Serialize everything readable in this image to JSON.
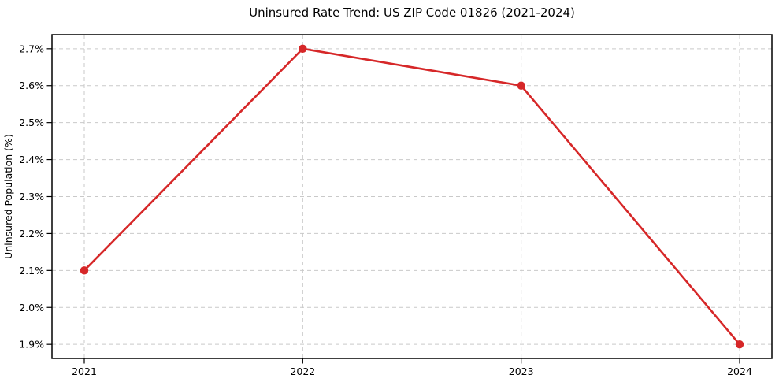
{
  "chart_data": {
    "type": "line",
    "title": "Uninsured Rate Trend: US ZIP Code 01826 (2021-2024)",
    "xlabel": "",
    "ylabel": "Uninsured Population (%)",
    "categories": [
      "2021",
      "2022",
      "2023",
      "2024"
    ],
    "series": [
      {
        "name": "Uninsured Rate",
        "values": [
          2.1,
          2.7,
          2.6,
          1.9
        ]
      }
    ],
    "yticks": [
      "1.9%",
      "2.0%",
      "2.1%",
      "2.2%",
      "2.3%",
      "2.4%",
      "2.5%",
      "2.6%",
      "2.7%"
    ],
    "ytick_values": [
      1.9,
      2.0,
      2.1,
      2.2,
      2.3,
      2.4,
      2.5,
      2.6,
      2.7
    ],
    "ylim": [
      1.862,
      2.738
    ],
    "grid": true,
    "legend": "none",
    "colors": {
      "line": "#d62728",
      "marker": "#d62728",
      "grid": "#c9c9c9",
      "spine": "#000000",
      "text": "#000000"
    }
  }
}
